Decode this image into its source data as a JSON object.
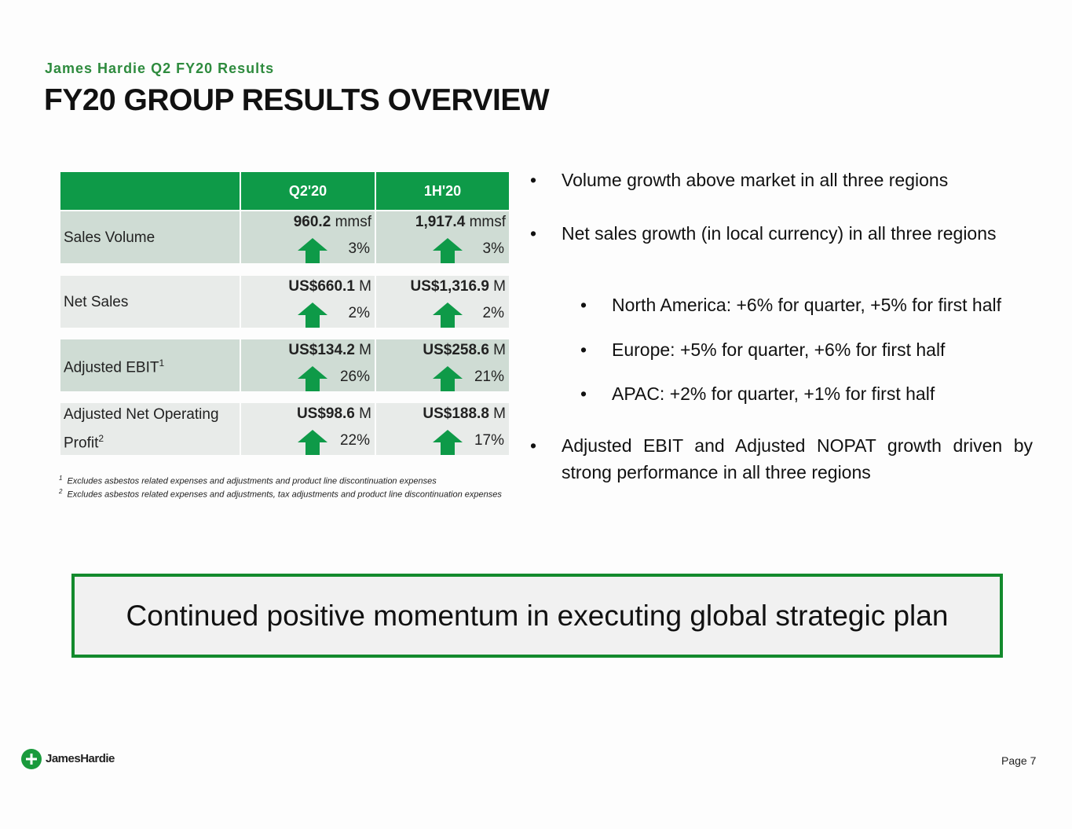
{
  "header": {
    "subtitle": "James Hardie Q2 FY20 Results",
    "title": "FY20 GROUP RESULTS OVERVIEW"
  },
  "table": {
    "columns": [
      "Q2'20",
      "1H'20"
    ],
    "rows": [
      {
        "label": "Sales Volume",
        "cells": [
          {
            "value": "960.2",
            "unit": "mmsf",
            "change": "3%"
          },
          {
            "value": "1,917.4",
            "unit": "mmsf",
            "change": "3%"
          }
        ]
      },
      {
        "label": "Net Sales",
        "cells": [
          {
            "value": "US$660.1",
            "unit": "M",
            "change": "2%"
          },
          {
            "value": "US$1,316.9",
            "unit": "M",
            "change": "2%"
          }
        ]
      },
      {
        "label": "Adjusted EBIT",
        "sup": "1",
        "cells": [
          {
            "value": "US$134.2",
            "unit": "M",
            "change": "26%"
          },
          {
            "value": "US$258.6",
            "unit": "M",
            "change": "21%"
          }
        ]
      },
      {
        "label": "Adjusted Net Operating Profit",
        "sup": "2",
        "cells": [
          {
            "value": "US$98.6",
            "unit": "M",
            "change": "22%"
          },
          {
            "value": "US$188.8",
            "unit": "M",
            "change": "17%"
          }
        ]
      }
    ]
  },
  "footnotes": [
    {
      "mark": "1",
      "text": "Excludes asbestos related expenses and adjustments and product line discontinuation expenses"
    },
    {
      "mark": "2",
      "text": "Excludes asbestos related expenses and adjustments, tax adjustments and product line discontinuation expenses"
    }
  ],
  "bullets": [
    {
      "text": "Volume growth above market in all three regions",
      "level": 1
    },
    {
      "text": "Net sales growth (in local currency) in all three regions",
      "level": 1
    },
    {
      "text": "North America: +6% for quarter, +5% for first half",
      "level": 2
    },
    {
      "text": "Europe: +5% for quarter, +6% for first half",
      "level": 2
    },
    {
      "text": "APAC: +2% for quarter, +1% for first half",
      "level": 2
    },
    {
      "text": "Adjusted EBIT and Adjusted NOPAT growth driven by strong performance in all three regions",
      "level": 1
    }
  ],
  "callout": "Continued positive momentum in executing global strategic plan",
  "footer": {
    "logo": "JamesHardie",
    "page": "Page 7"
  }
}
